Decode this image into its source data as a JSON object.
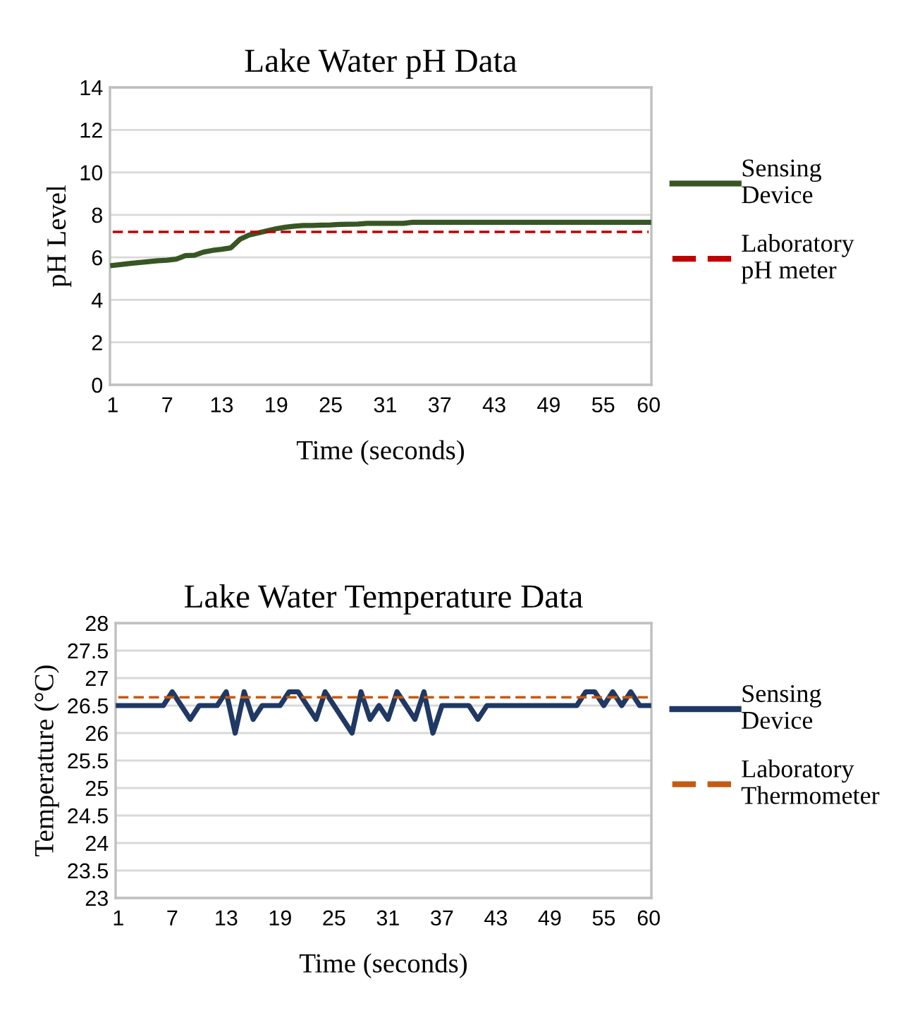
{
  "chart_data": [
    {
      "type": "line",
      "title": "Lake Water pH Data",
      "xlabel": "Time (seconds)",
      "ylabel": "pH Level",
      "categories": [
        "1",
        null,
        null,
        null,
        null,
        null,
        "7",
        null,
        null,
        null,
        null,
        null,
        "13",
        null,
        null,
        null,
        null,
        null,
        "19",
        null,
        null,
        null,
        null,
        null,
        "25",
        null,
        null,
        null,
        null,
        null,
        "31",
        null,
        null,
        null,
        null,
        null,
        "37",
        null,
        null,
        null,
        null,
        null,
        "43",
        null,
        null,
        null,
        null,
        null,
        "49",
        null,
        null,
        null,
        null,
        null,
        "55",
        null,
        null,
        null,
        null,
        "60"
      ],
      "series": [
        {
          "name": "Sensing Device",
          "color": "#375623",
          "line_style": "solid",
          "values": [
            5.62,
            5.67,
            5.72,
            5.76,
            5.8,
            5.84,
            5.87,
            5.92,
            6.08,
            6.1,
            6.25,
            6.33,
            6.38,
            6.45,
            6.85,
            7.05,
            7.15,
            7.25,
            7.35,
            7.42,
            7.47,
            7.5,
            7.5,
            7.52,
            7.53,
            7.55,
            7.56,
            7.57,
            7.6,
            7.6,
            7.6,
            7.6,
            7.6,
            7.65,
            7.65,
            7.65,
            7.65,
            7.65,
            7.65,
            7.65,
            7.65,
            7.65,
            7.65,
            7.65,
            7.65,
            7.65,
            7.65,
            7.65,
            7.65,
            7.65,
            7.65,
            7.65,
            7.65,
            7.65,
            7.65,
            7.65,
            7.65,
            7.65,
            7.65,
            7.65
          ]
        },
        {
          "name": "Laboratory pH meter",
          "color": "#c00000",
          "line_style": "dashed",
          "values": [
            7.2,
            7.2,
            7.2,
            7.2,
            7.2,
            7.2,
            7.2,
            7.2,
            7.2,
            7.2,
            7.2,
            7.2,
            7.2,
            7.2,
            7.2,
            7.2,
            7.2,
            7.2,
            7.2,
            7.2,
            7.2,
            7.2,
            7.2,
            7.2,
            7.2,
            7.2,
            7.2,
            7.2,
            7.2,
            7.2,
            7.2,
            7.2,
            7.2,
            7.2,
            7.2,
            7.2,
            7.2,
            7.2,
            7.2,
            7.2,
            7.2,
            7.2,
            7.2,
            7.2,
            7.2,
            7.2,
            7.2,
            7.2,
            7.2,
            7.2,
            7.2,
            7.2,
            7.2,
            7.2,
            7.2,
            7.2,
            7.2,
            7.2,
            7.2,
            7.2
          ]
        }
      ],
      "ylim": [
        0,
        14
      ],
      "yticks": [
        0,
        2,
        4,
        6,
        8,
        10,
        12,
        14
      ],
      "grid": "y",
      "legend": "right",
      "marker": "none"
    },
    {
      "type": "line",
      "title": "Lake Water Temperature Data",
      "xlabel": "Time (seconds)",
      "ylabel": "Temperature (°C)",
      "categories": [
        "1",
        null,
        null,
        null,
        null,
        null,
        "7",
        null,
        null,
        null,
        null,
        null,
        "13",
        null,
        null,
        null,
        null,
        null,
        "19",
        null,
        null,
        null,
        null,
        null,
        "25",
        null,
        null,
        null,
        null,
        null,
        "31",
        null,
        null,
        null,
        null,
        null,
        "37",
        null,
        null,
        null,
        null,
        null,
        "43",
        null,
        null,
        null,
        null,
        null,
        "49",
        null,
        null,
        null,
        null,
        null,
        "55",
        null,
        null,
        null,
        null,
        "60"
      ],
      "series": [
        {
          "name": "Sensing Device",
          "color": "#1f3864",
          "line_style": "solid",
          "values": [
            26.5,
            26.5,
            26.5,
            26.5,
            26.5,
            26.5,
            26.75,
            26.5,
            26.25,
            26.5,
            26.5,
            26.5,
            26.75,
            26.0,
            26.75,
            26.25,
            26.5,
            26.5,
            26.5,
            26.75,
            26.75,
            26.5,
            26.25,
            26.75,
            26.5,
            26.25,
            26.0,
            26.75,
            26.25,
            26.5,
            26.25,
            26.75,
            26.5,
            26.25,
            26.75,
            26.0,
            26.5,
            26.5,
            26.5,
            26.5,
            26.25,
            26.5,
            26.5,
            26.5,
            26.5,
            26.5,
            26.5,
            26.5,
            26.5,
            26.5,
            26.5,
            26.5,
            26.75,
            26.75,
            26.5,
            26.75,
            26.5,
            26.75,
            26.5,
            26.5
          ]
        },
        {
          "name": "Laboratory Thermometer",
          "color": "#c55a11",
          "line_style": "dashed",
          "values": [
            26.65,
            26.65,
            26.65,
            26.65,
            26.65,
            26.65,
            26.65,
            26.65,
            26.65,
            26.65,
            26.65,
            26.65,
            26.65,
            26.65,
            26.65,
            26.65,
            26.65,
            26.65,
            26.65,
            26.65,
            26.65,
            26.65,
            26.65,
            26.65,
            26.65,
            26.65,
            26.65,
            26.65,
            26.65,
            26.65,
            26.65,
            26.65,
            26.65,
            26.65,
            26.65,
            26.65,
            26.65,
            26.65,
            26.65,
            26.65,
            26.65,
            26.65,
            26.65,
            26.65,
            26.65,
            26.65,
            26.65,
            26.65,
            26.65,
            26.65,
            26.65,
            26.65,
            26.65,
            26.65,
            26.65,
            26.65,
            26.65,
            26.65,
            26.65,
            26.65
          ]
        }
      ],
      "ylim": [
        23,
        28
      ],
      "yticks": [
        23,
        23.5,
        24,
        24.5,
        25,
        25.5,
        26,
        26.5,
        27,
        27.5,
        28
      ],
      "grid": "y",
      "legend": "right",
      "marker": "none"
    }
  ]
}
